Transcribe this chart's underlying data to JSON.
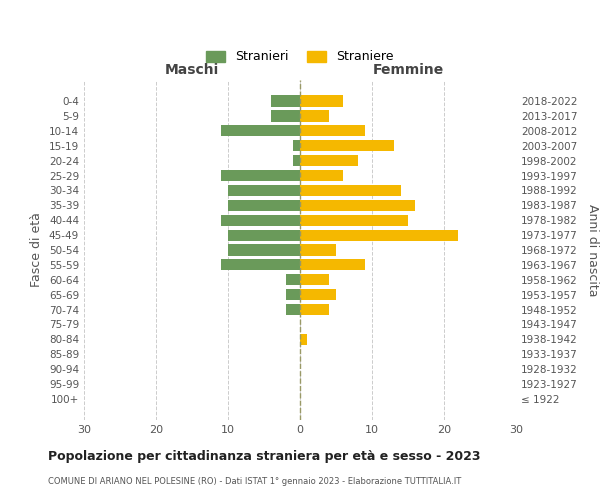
{
  "age_groups": [
    "100+",
    "95-99",
    "90-94",
    "85-89",
    "80-84",
    "75-79",
    "70-74",
    "65-69",
    "60-64",
    "55-59",
    "50-54",
    "45-49",
    "40-44",
    "35-39",
    "30-34",
    "25-29",
    "20-24",
    "15-19",
    "10-14",
    "5-9",
    "0-4"
  ],
  "birth_years": [
    "≤ 1922",
    "1923-1927",
    "1928-1932",
    "1933-1937",
    "1938-1942",
    "1943-1947",
    "1948-1952",
    "1953-1957",
    "1958-1962",
    "1963-1967",
    "1968-1972",
    "1973-1977",
    "1978-1982",
    "1983-1987",
    "1988-1992",
    "1993-1997",
    "1998-2002",
    "2003-2007",
    "2008-2012",
    "2013-2017",
    "2018-2022"
  ],
  "males": [
    0,
    0,
    0,
    0,
    0,
    0,
    2,
    2,
    2,
    11,
    10,
    10,
    11,
    10,
    10,
    11,
    1,
    1,
    11,
    4,
    4
  ],
  "females": [
    0,
    0,
    0,
    0,
    1,
    0,
    4,
    5,
    4,
    9,
    5,
    22,
    15,
    16,
    14,
    6,
    8,
    13,
    9,
    4,
    6
  ],
  "male_color": "#6a9a5a",
  "female_color": "#f5b800",
  "title": "Popolazione per cittadinanza straniera per età e sesso - 2023",
  "subtitle": "COMUNE DI ARIANO NEL POLESINE (RO) - Dati ISTAT 1° gennaio 2023 - Elaborazione TUTTITALIA.IT",
  "xlabel_left": "Maschi",
  "xlabel_right": "Femmine",
  "ylabel_left": "Fasce di età",
  "ylabel_right": "Anni di nascita",
  "legend_male": "Stranieri",
  "legend_female": "Straniere",
  "xlim": 30,
  "background_color": "#ffffff",
  "grid_color": "#cccccc"
}
